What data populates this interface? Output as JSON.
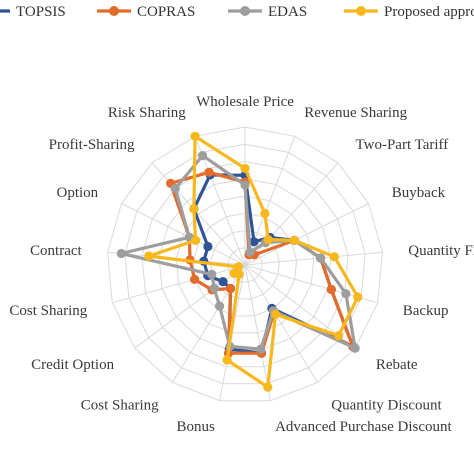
{
  "chart_data": {
    "type": "radar",
    "title": "",
    "categories": [
      "Wholesale Price",
      "Revenue Sharing",
      "Two-Part Tariff",
      "Buyback",
      "Quantity Flexibility",
      "Backup",
      "Rebate",
      "Quantity Discount",
      "Advanced Purchase Discount",
      "Bonus",
      "Cost Sharing",
      "Credit Option",
      "Cost Sharing",
      "Contract",
      "Option",
      "Profit-Sharing",
      "Risk Sharing"
    ],
    "rlim": [
      0,
      1
    ],
    "grid": true,
    "legend_position": "top",
    "series": [
      {
        "name": "TOPSIS",
        "color": "#2f5597",
        "values": [
          0.65,
          0.18,
          0.27,
          0.4,
          0.55,
          0.65,
          0.98,
          0.37,
          0.65,
          0.62,
          0.2,
          0.2,
          0.28,
          0.3,
          0.3,
          0.55,
          0.7
        ]
      },
      {
        "name": "COPRAS",
        "color": "#e36c2c",
        "values": [
          0.6,
          0.08,
          0.1,
          0.4,
          0.55,
          0.65,
          0.98,
          0.4,
          0.65,
          0.65,
          0.2,
          0.3,
          0.38,
          0.4,
          0.45,
          0.8,
          0.72
        ]
      },
      {
        "name": "EDAS",
        "color": "#9e9e9e",
        "values": [
          0.58,
          0.1,
          0.22,
          0.4,
          0.55,
          0.76,
          1.0,
          0.39,
          0.62,
          0.6,
          0.35,
          0.28,
          0.25,
          0.9,
          0.45,
          0.75,
          0.85
        ]
      },
      {
        "name": "Proposed approach",
        "color": "#f7b81d",
        "values": [
          0.7,
          0.4,
          0.25,
          0.4,
          0.65,
          0.85,
          0.85,
          0.42,
          0.9,
          0.7,
          0.08,
          0.1,
          0.05,
          0.7,
          0.4,
          0.55,
          1.0
        ]
      }
    ]
  }
}
